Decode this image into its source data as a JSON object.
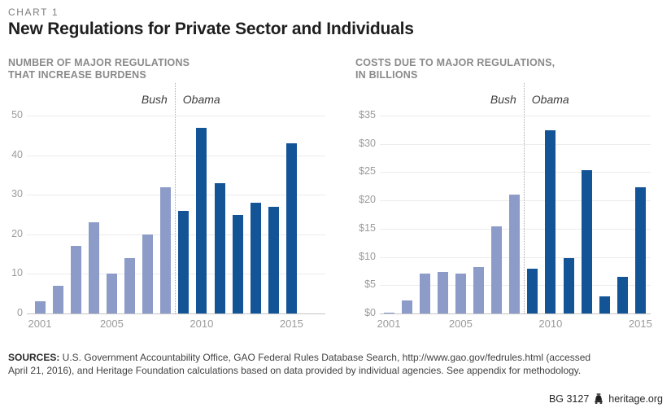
{
  "header": {
    "eyebrow": "CHART 1",
    "title": "New Regulations for Private Sector and Individuals"
  },
  "chart_data": [
    {
      "type": "bar",
      "title_lines": [
        "NUMBER OF MAJOR REGULATIONS",
        "THAT INCREASE BURDENS"
      ],
      "categories": [
        "2001",
        "2002",
        "2003",
        "2004",
        "2005",
        "2006",
        "2007",
        "2008",
        "2009",
        "2010",
        "2011",
        "2012",
        "2013",
        "2014",
        "2015"
      ],
      "values": [
        3,
        7,
        17,
        23,
        10,
        14,
        20,
        32,
        26,
        47,
        33,
        25,
        28,
        27,
        43
      ],
      "eras": [
        {
          "label": "Bush",
          "color": "#8C9BC8"
        },
        {
          "label": "Obama",
          "color": "#125496"
        }
      ],
      "divider_after_index": 7,
      "ylim": [
        0,
        50
      ],
      "yticks": [
        0,
        10,
        20,
        30,
        40,
        50
      ],
      "ytick_labels": [
        "0",
        "10",
        "20",
        "30",
        "40",
        "50"
      ],
      "xtick_indices": [
        0,
        4,
        9,
        14
      ],
      "xtick_labels": [
        "2001",
        "2005",
        "2010",
        "2015"
      ],
      "grid": true,
      "legend_position": "none"
    },
    {
      "type": "bar",
      "title_lines": [
        "COSTS DUE TO MAJOR REGULATIONS,",
        "IN BILLIONS"
      ],
      "categories": [
        "2001",
        "2002",
        "2003",
        "2004",
        "2005",
        "2006",
        "2007",
        "2008",
        "2009",
        "2010",
        "2011",
        "2012",
        "2013",
        "2014",
        "2015"
      ],
      "values": [
        0.1,
        2.3,
        7.0,
        7.3,
        7.0,
        8.2,
        15.4,
        21.0,
        8.0,
        32.4,
        9.8,
        25.4,
        3.1,
        6.5,
        22.3
      ],
      "eras": [
        {
          "label": "Bush",
          "color": "#8C9BC8"
        },
        {
          "label": "Obama",
          "color": "#125496"
        }
      ],
      "divider_after_index": 7,
      "ylim": [
        0,
        35
      ],
      "yticks": [
        0,
        5,
        10,
        15,
        20,
        25,
        30,
        35
      ],
      "ytick_labels": [
        "$0",
        "$5",
        "$10",
        "$15",
        "$20",
        "$25",
        "$30",
        "$35"
      ],
      "xtick_indices": [
        0,
        4,
        9,
        14
      ],
      "xtick_labels": [
        "2001",
        "2005",
        "2010",
        "2015"
      ],
      "grid": true,
      "legend_position": "none"
    }
  ],
  "footer": {
    "sources_label": "SOURCES:",
    "sources_line1": " U.S. Government Accountability Office, GAO Federal Rules Database Search, http://www.gao.gov/fedrules.html (accessed",
    "sources_line2": "April 21, 2016), and Heritage Foundation calculations based on data provided by individual agencies. See appendix for methodology.",
    "doc_id": "BG 3127",
    "site": "heritage.org"
  },
  "colors": {
    "bush_bar": "#8C9BC8",
    "obama_bar": "#125496",
    "gridline": "#ECECEC",
    "axis_line": "#C4C4C4",
    "title_text": "#1E1E1E",
    "muted_text": "#8A8A8A",
    "tick_text": "#9B9B9B"
  }
}
